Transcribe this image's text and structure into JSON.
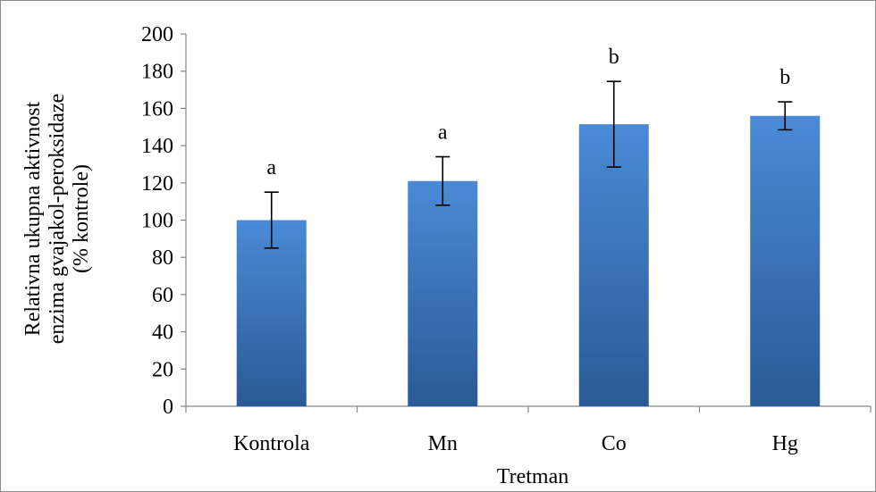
{
  "chart_data": {
    "type": "bar",
    "categories": [
      "Kontrola",
      "Mn",
      "Co",
      "Hg"
    ],
    "values": [
      100,
      121,
      151.5,
      156
    ],
    "error": [
      15,
      13,
      23,
      7.5
    ],
    "significance": [
      "a",
      "a",
      "b",
      "b"
    ],
    "title": "",
    "xlabel": "Tretman",
    "ylabel_lines": [
      "Relativna ukupna aktivnost",
      "enzima gvajakol-peroksidaze",
      "(% kontrole)"
    ],
    "ylim": [
      0,
      200
    ],
    "yticks": [
      0,
      20,
      40,
      60,
      80,
      100,
      120,
      140,
      160,
      180,
      200
    ],
    "grid": false,
    "legend": "none",
    "colors": {
      "bar_top": "#4a8ad6",
      "bar_bottom": "#2a5a96",
      "axis": "#868686",
      "error_bar": "#000000"
    }
  }
}
